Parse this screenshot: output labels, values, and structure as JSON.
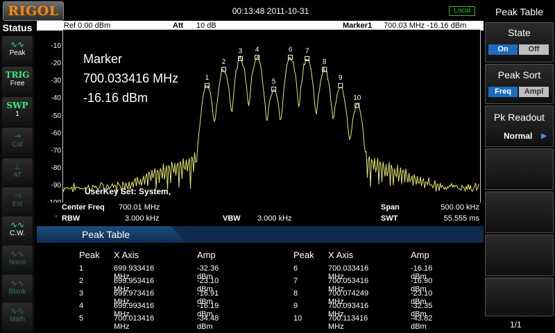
{
  "brand": "RIGOL",
  "datetime": "00:13:48 2011-10-31",
  "remote_status": "Local",
  "status_panel": {
    "title": "Status",
    "items": [
      {
        "name": "peak",
        "label": "Peak",
        "active": true
      },
      {
        "name": "trig",
        "label": "TRIG",
        "sub": "Free",
        "active": true
      },
      {
        "name": "swp",
        "label": "SWP",
        "sub": "1",
        "active": true
      },
      {
        "name": "cal",
        "label": "Cal",
        "active": false
      },
      {
        "name": "at",
        "label": "AT",
        "active": false
      },
      {
        "name": "ext",
        "label": "Ext",
        "active": false
      },
      {
        "name": "cw",
        "label": "C.W.",
        "active": true
      },
      {
        "name": "norm",
        "label": "Norm",
        "active": false
      },
      {
        "name": "blank",
        "label": "Blank",
        "active": false
      },
      {
        "name": "math",
        "label": "Math",
        "active": false
      }
    ]
  },
  "top_info": {
    "ref": "Ref  0.00 dBm",
    "att_label": "Att",
    "att_value": "10 dB",
    "marker_label": "Marker1",
    "marker_value": "700.03 MHz  -16.16 dBm"
  },
  "marker_readout": {
    "title": "Marker",
    "freq": "700.033416 MHz",
    "amp": "-16.16 dBm"
  },
  "userkey": "UserKey Set:    System,",
  "bottom_info": {
    "center_label": "Center Freq",
    "center_value": "700.01 MHz",
    "span_label": "Span",
    "span_value": "500.00 kHz",
    "rbw_label": "RBW",
    "rbw_value": "3.000 kHz",
    "vbw_label": "VBW",
    "vbw_value": "3.000 kHz",
    "swt_label": "SWT",
    "swt_value": "55.555 ms"
  },
  "chart_data": {
    "type": "line",
    "xlabel": "",
    "ylabel": "",
    "x_range_mhz": [
      699.76,
      700.26
    ],
    "ylim": [
      -100,
      0
    ],
    "y_ticks": [
      "0",
      "-10",
      "-20",
      "-30",
      "-40",
      "-50",
      "-60",
      "-70",
      "-80",
      "-90",
      "-100"
    ],
    "trace_color": "#e8e870",
    "grid": false,
    "peaks": [
      {
        "n": "1",
        "x": 699.933416,
        "y": -32.36
      },
      {
        "n": "2",
        "x": 699.953416,
        "y": -23.1
      },
      {
        "n": "3",
        "x": 699.973416,
        "y": -16.91
      },
      {
        "n": "4",
        "x": 699.993416,
        "y": -16.19
      },
      {
        "n": "5",
        "x": 700.013416,
        "y": -34.48
      },
      {
        "n": "6",
        "x": 700.033416,
        "y": -16.16
      },
      {
        "n": "7",
        "x": 700.053416,
        "y": -16.9
      },
      {
        "n": "8",
        "x": 700.074249,
        "y": -23.1
      },
      {
        "n": "9",
        "x": 700.093416,
        "y": -32.35
      },
      {
        "n": "10",
        "x": 700.113416,
        "y": -43.82
      }
    ]
  },
  "peak_table": {
    "title": "Peak Table",
    "headers": {
      "peak": "Peak",
      "x": "X Axis",
      "amp": "Amp"
    },
    "rows_left": [
      {
        "peak": "1",
        "x": "699.933416 MHz",
        "amp": "-32.36 dBm"
      },
      {
        "peak": "2",
        "x": "699.953416 MHz",
        "amp": "-23.10 dBm"
      },
      {
        "peak": "3",
        "x": "699.973416 MHz",
        "amp": "-16.91 dBm"
      },
      {
        "peak": "4",
        "x": "699.993416 MHz",
        "amp": "-16.19 dBm"
      },
      {
        "peak": "5",
        "x": "700.013416 MHz",
        "amp": "-34.48 dBm"
      }
    ],
    "rows_right": [
      {
        "peak": "6",
        "x": "700.033416 MHz",
        "amp": "-16.16 dBm"
      },
      {
        "peak": "7",
        "x": "700.053416 MHz",
        "amp": "-16.90 dBm"
      },
      {
        "peak": "8",
        "x": "700.074249 MHz",
        "amp": "-23.10 dBm"
      },
      {
        "peak": "9",
        "x": "700.093416 MHz",
        "amp": "-32.35 dBm"
      },
      {
        "peak": "10",
        "x": "700.113416 MHz",
        "amp": "-43.82 dBm"
      }
    ]
  },
  "softkeys": {
    "menu_title": "Peak Table",
    "state": {
      "title": "State",
      "on": "On",
      "off": "Off",
      "selected": "On"
    },
    "peak_sort": {
      "title": "Peak Sort",
      "freq": "Freq",
      "ampl": "Ampl",
      "selected": "Freq"
    },
    "pk_readout": {
      "title": "Pk Readout",
      "value": "Normal"
    },
    "page": "1/1"
  },
  "colors": {
    "accent_blue": "#1e6cc0",
    "trace": "#e8e870",
    "brand": "#ff8a00",
    "status_green": "#3dea7a"
  }
}
